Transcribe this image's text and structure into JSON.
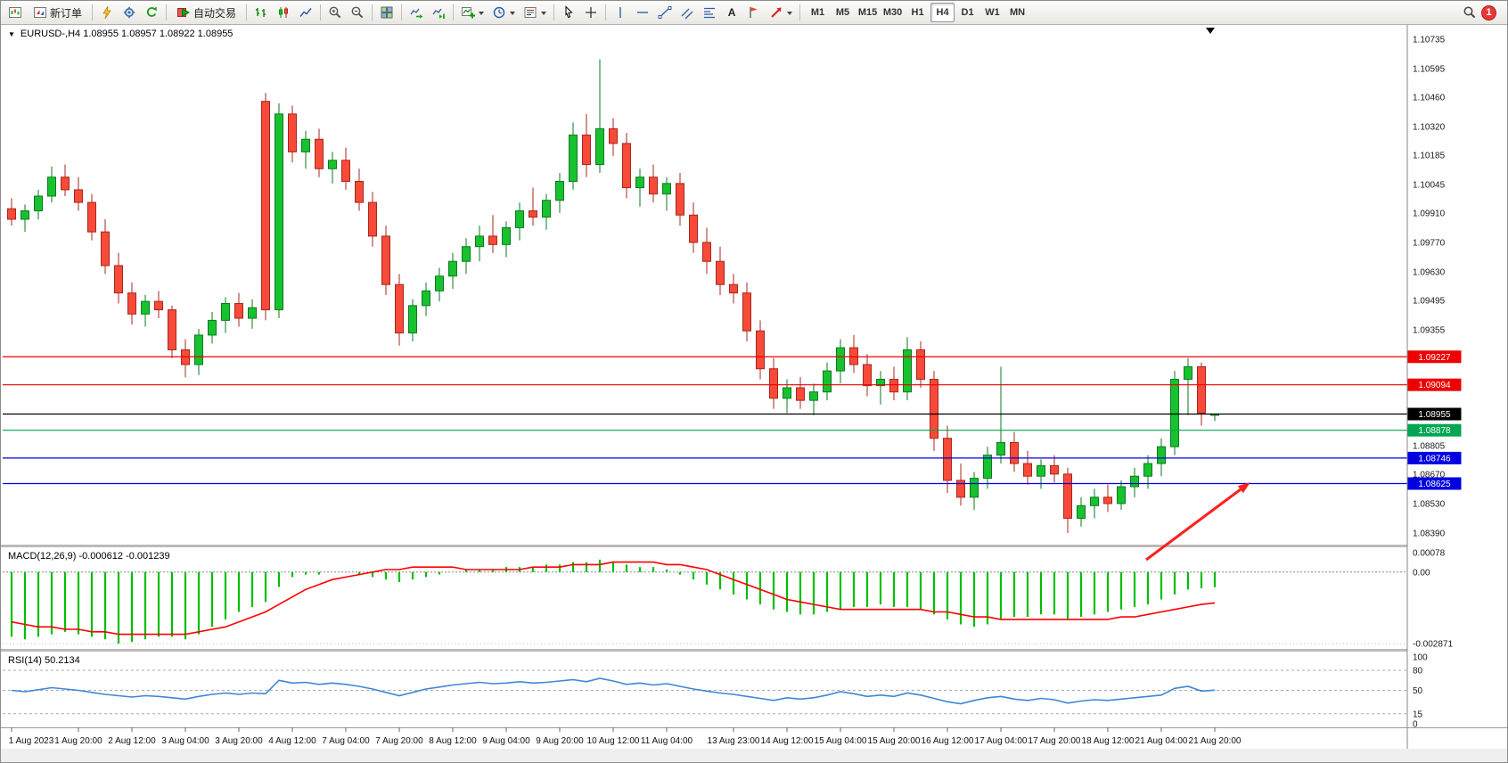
{
  "toolbar": {
    "new_order_label": "新订单",
    "auto_trading_label": "自动交易",
    "text_tool_label": "A",
    "timeframes": [
      "M1",
      "M5",
      "M15",
      "M30",
      "H1",
      "H4",
      "D1",
      "W1",
      "MN"
    ],
    "active_timeframe": "H4",
    "notification_count": "1",
    "icon_names": [
      "chart-window-icon",
      "new-order-icon",
      "lightning-icon",
      "gear-icon",
      "refresh-icon",
      "play-icon",
      "bar-chart-icon",
      "candlestick-icon",
      "line-chart-icon",
      "zoom-in-icon",
      "zoom-out-icon",
      "tile-windows-icon",
      "auto-scroll-icon",
      "chart-shift-icon",
      "indicators-icon",
      "clock-icon",
      "template-icon",
      "cursor-icon",
      "crosshair-icon",
      "vertical-line-icon",
      "horizontal-line-icon",
      "trendline-icon",
      "channel-icon",
      "fibonacci-icon",
      "text-icon",
      "flag-icon",
      "arrow-icon",
      "search-icon",
      "caret-down-icon"
    ]
  },
  "chart": {
    "title": "EURUSD-,H4 1.08955 1.08957 1.08922 1.08955",
    "symbol": "EURUSD-",
    "period": "H4",
    "ohlc": {
      "open": "1.08955",
      "high": "1.08957",
      "low": "1.08922",
      "close": "1.08955"
    },
    "macd_label": "MACD(12,26,9) -0.000612 -0.001239",
    "rsi_label": "RSI(14) 50.2134"
  },
  "chart_data": {
    "type": "candlestick",
    "symbol": "EURUSD-",
    "timeframe": "H4",
    "price_range": [
      1.0839,
      1.10735
    ],
    "price_axis_labels": [
      1.10735,
      1.10595,
      1.1046,
      1.1032,
      1.10185,
      1.10045,
      1.0991,
      1.0977,
      1.0963,
      1.09495,
      1.09355,
      1.08805,
      1.0867,
      1.0853,
      1.0839
    ],
    "colors": {
      "up_fill": "#17c22e",
      "up_stroke": "#0b7a1f",
      "down_fill": "#f74a38",
      "down_stroke": "#a8271c",
      "resistance": "#ee0000",
      "support_blue": "#0000e1",
      "support_green": "#00a651",
      "current_price": "#000000",
      "macd_hist": "#00c000",
      "macd_signal": "#ff0000",
      "rsi_line": "#3f86d8",
      "arrow": "#ff2020"
    },
    "hlines": [
      {
        "price": 1.09227,
        "color": "#ee0000",
        "tag": "1.09227",
        "kind": "resistance"
      },
      {
        "price": 1.09094,
        "color": "#ee0000",
        "tag": "1.09094",
        "kind": "resistance"
      },
      {
        "price": 1.08955,
        "color": "#000000",
        "tag": "1.08955",
        "kind": "current-price"
      },
      {
        "price": 1.08878,
        "color": "#00a651",
        "tag": "1.08878",
        "kind": "support"
      },
      {
        "price": 1.08746,
        "color": "#0000e1",
        "tag": "1.08746",
        "kind": "support"
      },
      {
        "price": 1.08625,
        "color": "#0000e1",
        "tag": "1.08625",
        "kind": "support"
      }
    ],
    "candles": [
      [
        1.0993,
        1.0998,
        1.0985,
        1.0988
      ],
      [
        1.0988,
        1.0995,
        1.0982,
        1.0992
      ],
      [
        1.0992,
        1.1002,
        1.0988,
        1.0999
      ],
      [
        1.0999,
        1.1013,
        1.0996,
        1.1008
      ],
      [
        1.1008,
        1.1014,
        1.0999,
        1.1002
      ],
      [
        1.1002,
        1.1008,
        1.0992,
        1.0996
      ],
      [
        1.0996,
        1.1,
        1.0978,
        1.0982
      ],
      [
        1.0982,
        1.0988,
        1.0962,
        1.0966
      ],
      [
        1.0966,
        1.0972,
        1.0948,
        1.0953
      ],
      [
        1.0953,
        1.0958,
        1.0938,
        1.0943
      ],
      [
        1.0943,
        1.0952,
        1.0937,
        1.0949
      ],
      [
        1.0949,
        1.0954,
        1.0941,
        1.0945
      ],
      [
        1.0945,
        1.0947,
        1.0922,
        1.0926
      ],
      [
        1.0926,
        1.0931,
        1.0913,
        1.0919
      ],
      [
        1.0919,
        1.0936,
        1.0914,
        1.0933
      ],
      [
        1.0933,
        1.0944,
        1.0929,
        1.094
      ],
      [
        1.094,
        1.0951,
        1.0934,
        1.0948
      ],
      [
        1.0948,
        1.0953,
        1.0937,
        1.0941
      ],
      [
        1.0941,
        1.095,
        1.0936,
        1.0946
      ],
      [
        1.1044,
        1.1048,
        1.094,
        1.0945
      ],
      [
        1.0945,
        1.1043,
        1.0941,
        1.1038
      ],
      [
        1.1038,
        1.1042,
        1.1015,
        1.102
      ],
      [
        1.102,
        1.103,
        1.1012,
        1.1026
      ],
      [
        1.1026,
        1.1031,
        1.1008,
        1.1012
      ],
      [
        1.1012,
        1.102,
        1.1005,
        1.1016
      ],
      [
        1.1016,
        1.1022,
        1.1002,
        1.1006
      ],
      [
        1.1006,
        1.1012,
        1.0992,
        1.0996
      ],
      [
        1.0996,
        1.1001,
        1.0975,
        1.098
      ],
      [
        1.098,
        1.0985,
        1.0952,
        1.0957
      ],
      [
        1.0957,
        1.0962,
        1.0928,
        1.0934
      ],
      [
        1.0934,
        1.095,
        1.093,
        1.0947
      ],
      [
        1.0947,
        1.0958,
        1.0942,
        1.0954
      ],
      [
        1.0954,
        1.0965,
        1.0949,
        1.0961
      ],
      [
        1.0961,
        1.0972,
        1.0955,
        1.0968
      ],
      [
        1.0968,
        1.0979,
        1.0962,
        1.0975
      ],
      [
        1.0975,
        1.0985,
        1.0968,
        1.098
      ],
      [
        1.098,
        1.099,
        1.0972,
        1.0976
      ],
      [
        1.0976,
        1.0987,
        1.097,
        1.0984
      ],
      [
        1.0984,
        1.0996,
        1.0978,
        1.0992
      ],
      [
        1.0992,
        1.1003,
        1.0985,
        1.0989
      ],
      [
        1.0989,
        1.1,
        1.0983,
        1.0997
      ],
      [
        1.0997,
        1.101,
        1.0991,
        1.1006
      ],
      [
        1.1006,
        1.1034,
        1.1002,
        1.1028
      ],
      [
        1.1028,
        1.1038,
        1.1008,
        1.1014
      ],
      [
        1.1014,
        1.1064,
        1.101,
        1.1031
      ],
      [
        1.1031,
        1.1036,
        1.1018,
        1.1024
      ],
      [
        1.1024,
        1.1029,
        1.0998,
        1.1003
      ],
      [
        1.1003,
        1.1012,
        1.0994,
        1.1008
      ],
      [
        1.1008,
        1.1014,
        1.0996,
        1.1
      ],
      [
        1.1,
        1.1008,
        1.0992,
        1.1005
      ],
      [
        1.1005,
        1.101,
        1.0985,
        1.099
      ],
      [
        1.099,
        1.0996,
        1.0972,
        1.0977
      ],
      [
        1.0977,
        1.0984,
        1.0962,
        1.0968
      ],
      [
        1.0968,
        1.0975,
        1.0952,
        1.0957
      ],
      [
        1.0957,
        1.0962,
        1.0948,
        1.0953
      ],
      [
        1.0953,
        1.0958,
        1.093,
        1.0935
      ],
      [
        1.0935,
        1.094,
        1.0912,
        1.0917
      ],
      [
        1.0917,
        1.0922,
        1.0898,
        1.0903
      ],
      [
        1.0903,
        1.0912,
        1.0896,
        1.0908
      ],
      [
        1.0908,
        1.0913,
        1.0898,
        1.0902
      ],
      [
        1.0902,
        1.091,
        1.0895,
        1.0906
      ],
      [
        1.0906,
        1.092,
        1.0902,
        1.0916
      ],
      [
        1.0916,
        1.0931,
        1.091,
        1.0927
      ],
      [
        1.0927,
        1.0933,
        1.0915,
        1.0919
      ],
      [
        1.0919,
        1.0924,
        1.0904,
        1.0909
      ],
      [
        1.0909,
        1.0916,
        1.09,
        1.0912
      ],
      [
        1.0912,
        1.0918,
        1.0902,
        1.0906
      ],
      [
        1.0906,
        1.0932,
        1.0902,
        1.0926
      ],
      [
        1.0926,
        1.093,
        1.0908,
        1.0912
      ],
      [
        1.0912,
        1.0916,
        1.0878,
        1.0884
      ],
      [
        1.0884,
        1.089,
        1.0858,
        1.0864
      ],
      [
        1.0864,
        1.0872,
        1.0852,
        1.0856
      ],
      [
        1.0856,
        1.0868,
        1.085,
        1.0865
      ],
      [
        1.0865,
        1.088,
        1.086,
        1.0876
      ],
      [
        1.0876,
        1.0918,
        1.0872,
        1.0882
      ],
      [
        1.0882,
        1.0887,
        1.0868,
        1.0872
      ],
      [
        1.0872,
        1.0878,
        1.0862,
        1.0866
      ],
      [
        1.0866,
        1.0874,
        1.086,
        1.0871
      ],
      [
        1.0871,
        1.0876,
        1.0863,
        1.0867
      ],
      [
        1.0867,
        1.087,
        1.0839,
        1.0846
      ],
      [
        1.0846,
        1.0856,
        1.0842,
        1.0852
      ],
      [
        1.0852,
        1.086,
        1.0846,
        1.0856
      ],
      [
        1.0856,
        1.0862,
        1.0849,
        1.0853
      ],
      [
        1.0853,
        1.0864,
        1.085,
        1.0861
      ],
      [
        1.0861,
        1.087,
        1.0856,
        1.0866
      ],
      [
        1.0866,
        1.0876,
        1.086,
        1.0872
      ],
      [
        1.0872,
        1.0884,
        1.0866,
        1.088
      ],
      [
        1.088,
        1.0916,
        1.0876,
        1.0912
      ],
      [
        1.0912,
        1.0922,
        1.0895,
        1.0918
      ],
      [
        1.0918,
        1.092,
        1.089,
        1.0896
      ],
      [
        1.08955,
        1.08957,
        1.08922,
        1.08955
      ]
    ],
    "time_labels": [
      {
        "i": 0,
        "t": "1 Aug 2023"
      },
      {
        "i": 5,
        "t": "1 Aug 20:00"
      },
      {
        "i": 9,
        "t": "2 Aug 12:00"
      },
      {
        "i": 13,
        "t": "3 Aug 04:00"
      },
      {
        "i": 17,
        "t": "3 Aug 20:00"
      },
      {
        "i": 21,
        "t": "4 Aug 12:00"
      },
      {
        "i": 25,
        "t": "7 Aug 04:00"
      },
      {
        "i": 29,
        "t": "7 Aug 20:00"
      },
      {
        "i": 33,
        "t": "8 Aug 12:00"
      },
      {
        "i": 37,
        "t": "9 Aug 04:00"
      },
      {
        "i": 41,
        "t": "9 Aug 20:00"
      },
      {
        "i": 45,
        "t": "10 Aug 12:00"
      },
      {
        "i": 49,
        "t": "11 Aug 04:00"
      },
      {
        "i": 54,
        "t": "13 Aug 23:00"
      },
      {
        "i": 58,
        "t": "14 Aug 12:00"
      },
      {
        "i": 62,
        "t": "15 Aug 04:00"
      },
      {
        "i": 66,
        "t": "15 Aug 20:00"
      },
      {
        "i": 70,
        "t": "16 Aug 12:00"
      },
      {
        "i": 74,
        "t": "17 Aug 04:00"
      },
      {
        "i": 78,
        "t": "17 Aug 20:00"
      },
      {
        "i": 82,
        "t": "18 Aug 12:00"
      },
      {
        "i": 86,
        "t": "21 Aug 04:00"
      },
      {
        "i": 90,
        "t": "21 Aug 20:00"
      }
    ],
    "macd": {
      "label": "MACD(12,26,9) -0.000612 -0.001239",
      "axis_values": [
        0.00078,
        0.0,
        -0.002871
      ],
      "axis_labels": [
        "0.00078",
        "0.00",
        "-0.002871"
      ],
      "hist": [
        -0.0026,
        -0.0027,
        -0.0026,
        -0.0025,
        -0.0024,
        -0.0025,
        -0.0026,
        -0.0027,
        -0.002871,
        -0.0028,
        -0.0027,
        -0.0026,
        -0.0026,
        -0.0027,
        -0.0025,
        -0.0022,
        -0.0019,
        -0.0016,
        -0.0014,
        -0.0012,
        -0.0006,
        -0.0002,
        -0.0001,
        -0.0001,
        0.0,
        0.0,
        -0.0001,
        -0.0002,
        -0.0003,
        -0.0004,
        -0.0003,
        -0.0002,
        -0.0001,
        0.0,
        0.0001,
        0.0001,
        0.0001,
        0.0002,
        0.0002,
        0.0002,
        0.0003,
        0.0003,
        0.0004,
        0.0004,
        0.0005,
        0.0004,
        0.0003,
        0.0002,
        0.0002,
        0.0001,
        -0.0001,
        -0.0003,
        -0.0005,
        -0.0007,
        -0.0009,
        -0.0011,
        -0.0013,
        -0.0015,
        -0.0016,
        -0.0017,
        -0.0017,
        -0.0016,
        -0.0015,
        -0.0014,
        -0.0014,
        -0.0013,
        -0.0014,
        -0.0014,
        -0.0015,
        -0.0017,
        -0.0019,
        -0.0021,
        -0.0022,
        -0.0021,
        -0.0019,
        -0.0018,
        -0.0018,
        -0.0017,
        -0.0017,
        -0.0019,
        -0.0018,
        -0.0017,
        -0.0016,
        -0.0015,
        -0.0014,
        -0.0013,
        -0.0011,
        -0.0009,
        -0.0007,
        -0.00065,
        -0.000612
      ],
      "signal": [
        -0.002,
        -0.0021,
        -0.0022,
        -0.0022,
        -0.0023,
        -0.0023,
        -0.0024,
        -0.0024,
        -0.0025,
        -0.0025,
        -0.0025,
        -0.0025,
        -0.0025,
        -0.0025,
        -0.0024,
        -0.0023,
        -0.0022,
        -0.002,
        -0.0018,
        -0.0016,
        -0.0013,
        -0.001,
        -0.0007,
        -0.0005,
        -0.0003,
        -0.0002,
        -0.0001,
        0.0,
        0.0001,
        0.0001,
        0.0002,
        0.0002,
        0.0002,
        0.0002,
        0.0001,
        0.0001,
        0.0001,
        0.0001,
        0.0001,
        0.0002,
        0.0002,
        0.0002,
        0.0003,
        0.0003,
        0.0003,
        0.0004,
        0.0004,
        0.0004,
        0.0004,
        0.0003,
        0.0003,
        0.0002,
        0.0001,
        -0.0001,
        -0.0003,
        -0.0005,
        -0.0007,
        -0.0009,
        -0.0011,
        -0.0012,
        -0.0013,
        -0.0014,
        -0.0015,
        -0.0015,
        -0.0015,
        -0.0015,
        -0.0015,
        -0.0015,
        -0.0015,
        -0.0016,
        -0.0016,
        -0.0017,
        -0.0018,
        -0.0018,
        -0.0019,
        -0.0019,
        -0.0019,
        -0.0019,
        -0.0019,
        -0.0019,
        -0.0019,
        -0.0019,
        -0.0019,
        -0.0018,
        -0.0018,
        -0.0017,
        -0.0016,
        -0.0015,
        -0.0014,
        -0.0013,
        -0.001239
      ]
    },
    "rsi": {
      "label": "RSI(14) 50.2134",
      "levels": [
        80,
        50,
        15
      ],
      "axis_labels": [
        "100",
        "80",
        "50",
        "15",
        "0"
      ],
      "axis_label_values": [
        100,
        80,
        50,
        15,
        0
      ],
      "values": [
        50,
        48,
        51,
        54,
        52,
        50,
        47,
        44,
        42,
        40,
        42,
        41,
        39,
        37,
        41,
        44,
        46,
        44,
        46,
        45,
        65,
        61,
        62,
        59,
        61,
        59,
        56,
        52,
        47,
        42,
        47,
        52,
        55,
        58,
        60,
        62,
        60,
        61,
        63,
        61,
        62,
        64,
        66,
        63,
        68,
        64,
        59,
        61,
        58,
        60,
        56,
        52,
        49,
        46,
        44,
        41,
        38,
        35,
        39,
        37,
        39,
        43,
        48,
        45,
        41,
        43,
        41,
        46,
        43,
        38,
        33,
        30,
        35,
        39,
        41,
        37,
        35,
        38,
        36,
        31,
        34,
        36,
        35,
        37,
        39,
        41,
        43,
        53,
        56,
        49,
        50.21
      ]
    },
    "annotation_arrow": {
      "color": "#ff2020",
      "direction": "up-right",
      "points_to": 1.08625
    }
  }
}
